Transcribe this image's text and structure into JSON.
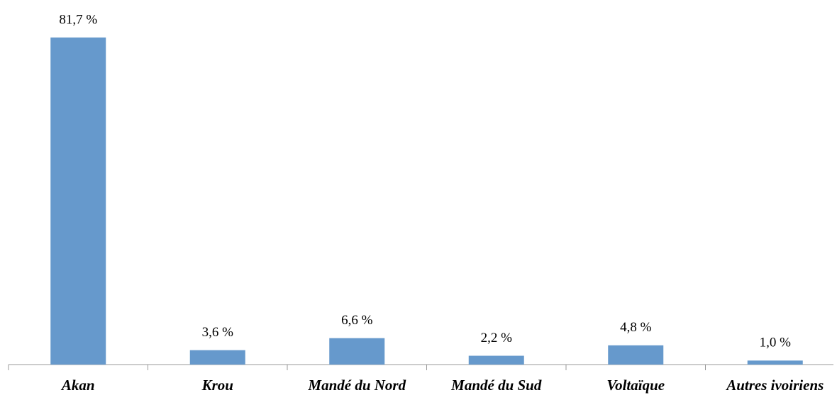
{
  "chart_data": {
    "type": "bar",
    "categories": [
      "Akan",
      "Krou",
      "Mandé du Nord",
      "Mandé du Sud",
      "Voltaïque",
      "Autres ivoiriens"
    ],
    "values": [
      81.7,
      3.6,
      6.6,
      2.2,
      4.8,
      1.0
    ],
    "value_labels": [
      "81,7 %",
      "3,6 %",
      "6,6 %",
      "2,2 %",
      "4,8 %",
      "1,0 %"
    ],
    "color": "#6699cc",
    "grid": false
  }
}
